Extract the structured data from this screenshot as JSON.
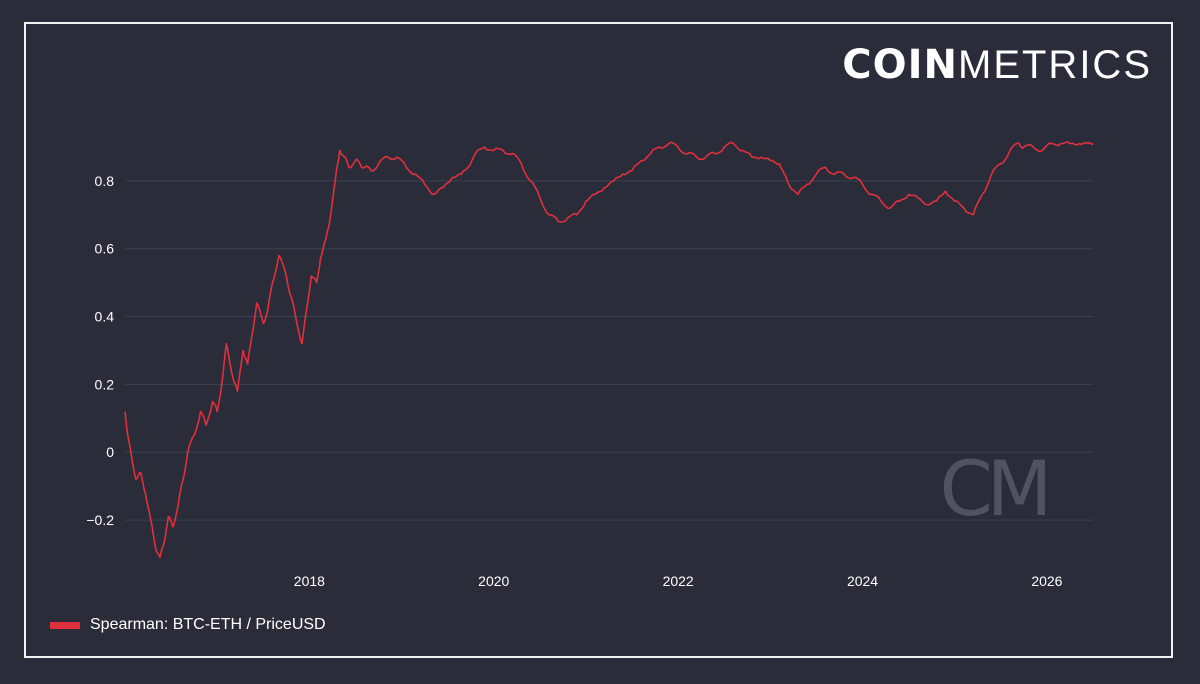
{
  "brand": {
    "bold": "COIN",
    "light": "METRICS"
  },
  "watermark": "CM",
  "legend": {
    "label": "Spearman: BTC-ETH / PriceUSD"
  },
  "colors": {
    "background": "#2a2c3a",
    "series": "#e0303c",
    "grid": "#3d4050",
    "text": "#ffffff"
  },
  "chart_data": {
    "type": "line",
    "title": "",
    "xlabel": "",
    "ylabel": "",
    "grid": true,
    "legend_position": "bottom-left",
    "xlim": [
      2016.0,
      2026.5
    ],
    "ylim": [
      -0.3,
      0.95
    ],
    "x_ticks": [
      {
        "value": 2018,
        "label": "2018"
      },
      {
        "value": 2020,
        "label": "2020"
      },
      {
        "value": 2022,
        "label": "2022"
      },
      {
        "value": 2024,
        "label": "2024"
      },
      {
        "value": 2026,
        "label": "2026"
      }
    ],
    "y_ticks": [
      {
        "value": 0.8,
        "label": "0.8"
      },
      {
        "value": 0.6,
        "label": "0.6"
      },
      {
        "value": 0.4,
        "label": "0.4"
      },
      {
        "value": 0.2,
        "label": "0.2"
      },
      {
        "value": 0.0,
        "label": "0"
      },
      {
        "value": -0.2,
        "label": "−0.2"
      }
    ],
    "series": [
      {
        "name": "Spearman: BTC-ETH / PriceUSD",
        "x": [
          2016.0,
          2016.03,
          2016.08,
          2016.12,
          2016.17,
          2016.22,
          2016.28,
          2016.33,
          2016.38,
          2016.42,
          2016.47,
          2016.52,
          2016.58,
          2016.63,
          2016.68,
          2016.75,
          2016.82,
          2016.88,
          2016.95,
          2017.0,
          2017.05,
          2017.1,
          2017.17,
          2017.22,
          2017.28,
          2017.33,
          2017.38,
          2017.43,
          2017.5,
          2017.55,
          2017.6,
          2017.67,
          2017.75,
          2017.8,
          2017.85,
          2017.92,
          2017.97,
          2018.02,
          2018.08,
          2018.12,
          2018.18,
          2018.22,
          2018.28,
          2018.33,
          2018.38,
          2018.43,
          2018.5,
          2018.55,
          2018.6,
          2018.67,
          2018.75,
          2018.85,
          2018.95,
          2019.05,
          2019.15,
          2019.25,
          2019.35,
          2019.45,
          2019.55,
          2019.65,
          2019.72,
          2019.8,
          2019.9,
          2020.0,
          2020.1,
          2020.2,
          2020.3,
          2020.4,
          2020.5,
          2020.6,
          2020.7,
          2020.8,
          2020.9,
          2021.0,
          2021.1,
          2021.2,
          2021.3,
          2021.4,
          2021.5,
          2021.6,
          2021.7,
          2021.8,
          2021.9,
          2022.0,
          2022.1,
          2022.2,
          2022.3,
          2022.4,
          2022.5,
          2022.6,
          2022.7,
          2022.8,
          2022.9,
          2023.0,
          2023.1,
          2023.15,
          2023.2,
          2023.3,
          2023.4,
          2023.5,
          2023.6,
          2023.7,
          2023.8,
          2023.9,
          2024.0,
          2024.1,
          2024.2,
          2024.3,
          2024.4,
          2024.5,
          2024.6,
          2024.7,
          2024.8,
          2024.9,
          2025.0,
          2025.1,
          2025.2,
          2025.3,
          2025.4,
          2025.5,
          2025.6,
          2025.7,
          2025.75,
          2025.85,
          2025.95,
          2026.05,
          2026.15,
          2026.25,
          2026.35,
          2026.45,
          2026.5
        ],
        "values": [
          0.12,
          0.05,
          -0.03,
          -0.08,
          -0.06,
          -0.12,
          -0.2,
          -0.28,
          -0.31,
          -0.27,
          -0.19,
          -0.22,
          -0.15,
          -0.08,
          0.0,
          0.05,
          0.12,
          0.08,
          0.15,
          0.12,
          0.2,
          0.32,
          0.22,
          0.18,
          0.3,
          0.26,
          0.35,
          0.44,
          0.38,
          0.42,
          0.5,
          0.58,
          0.52,
          0.46,
          0.4,
          0.32,
          0.42,
          0.52,
          0.5,
          0.57,
          0.63,
          0.68,
          0.8,
          0.89,
          0.87,
          0.84,
          0.86,
          0.85,
          0.84,
          0.83,
          0.85,
          0.87,
          0.87,
          0.84,
          0.82,
          0.79,
          0.76,
          0.78,
          0.81,
          0.82,
          0.84,
          0.88,
          0.9,
          0.89,
          0.89,
          0.88,
          0.85,
          0.8,
          0.75,
          0.7,
          0.68,
          0.69,
          0.7,
          0.74,
          0.76,
          0.78,
          0.8,
          0.82,
          0.83,
          0.86,
          0.88,
          0.9,
          0.91,
          0.9,
          0.88,
          0.87,
          0.87,
          0.88,
          0.9,
          0.91,
          0.89,
          0.87,
          0.87,
          0.86,
          0.85,
          0.82,
          0.79,
          0.76,
          0.79,
          0.82,
          0.84,
          0.82,
          0.82,
          0.81,
          0.79,
          0.76,
          0.74,
          0.72,
          0.74,
          0.76,
          0.75,
          0.73,
          0.74,
          0.77,
          0.74,
          0.72,
          0.7,
          0.76,
          0.82,
          0.85,
          0.89,
          0.91,
          0.9,
          0.9,
          0.89,
          0.91,
          0.91,
          0.91,
          0.91,
          0.91,
          0.91
        ]
      }
    ]
  }
}
